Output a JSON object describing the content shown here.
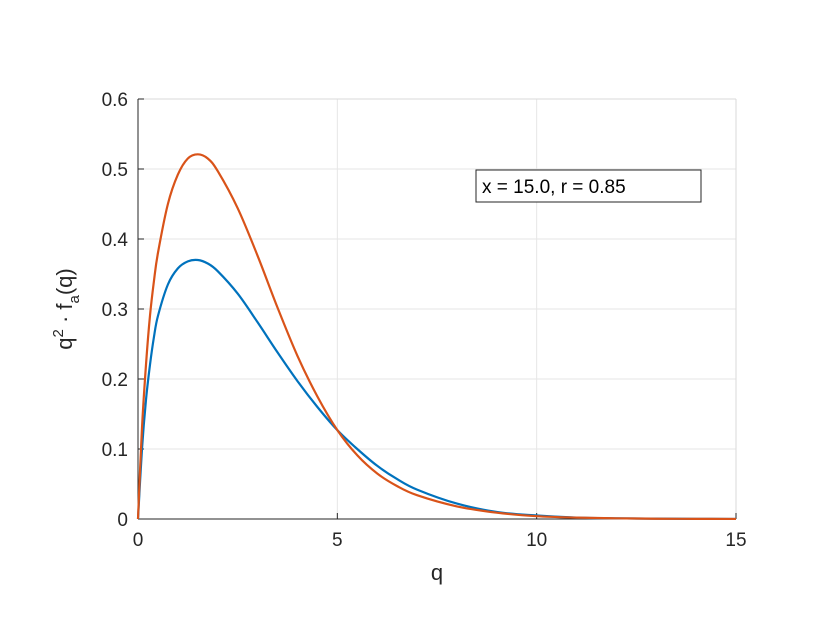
{
  "chart_data": {
    "type": "line",
    "title": "",
    "xlabel": "q",
    "ylabel": {
      "base": "q",
      "sup": "2",
      "middle": " · f",
      "sub": "a",
      "tail": "(q)"
    },
    "xlim": [
      0,
      15
    ],
    "ylim": [
      0,
      0.6
    ],
    "xticks": [
      0,
      5,
      10,
      15
    ],
    "xtick_labels": [
      "0",
      "5",
      "10",
      "15"
    ],
    "yticks": [
      0,
      0.1,
      0.2,
      0.3,
      0.4,
      0.5,
      0.6
    ],
    "ytick_labels": [
      "0",
      "0.1",
      "0.2",
      "0.3",
      "0.4",
      "0.5",
      "0.6"
    ],
    "grid": true,
    "annotation": "x = 15.0, r = 0.85",
    "series": [
      {
        "color": "#0072bd",
        "x": [
          0,
          0.1,
          0.2,
          0.3,
          0.4,
          0.5,
          0.75,
          1.0,
          1.25,
          1.5,
          1.75,
          2.0,
          2.5,
          3.0,
          3.5,
          4.0,
          4.5,
          5.0,
          5.5,
          6.0,
          6.5,
          7.0,
          8.0,
          9.0,
          10.0,
          11.0,
          12.0,
          13.0,
          14.0,
          15.0
        ],
        "y": [
          0,
          0.1,
          0.17,
          0.22,
          0.26,
          0.29,
          0.335,
          0.358,
          0.368,
          0.37,
          0.365,
          0.354,
          0.322,
          0.281,
          0.238,
          0.197,
          0.16,
          0.127,
          0.1,
          0.076,
          0.057,
          0.042,
          0.022,
          0.01,
          0.005,
          0.002,
          0.001,
          0.0005,
          0.0002,
          0.0001
        ]
      },
      {
        "color": "#d95319",
        "x": [
          0,
          0.1,
          0.2,
          0.3,
          0.4,
          0.5,
          0.75,
          1.0,
          1.25,
          1.5,
          1.75,
          2.0,
          2.5,
          3.0,
          3.5,
          4.0,
          4.5,
          5.0,
          5.5,
          6.0,
          6.5,
          7.0,
          8.0,
          9.0,
          10.0,
          11.0,
          12.0,
          13.0,
          14.0,
          15.0
        ],
        "y": [
          0,
          0.13,
          0.22,
          0.29,
          0.34,
          0.38,
          0.45,
          0.492,
          0.515,
          0.521,
          0.515,
          0.497,
          0.444,
          0.376,
          0.302,
          0.233,
          0.175,
          0.127,
          0.091,
          0.065,
          0.047,
          0.034,
          0.018,
          0.009,
          0.004,
          0.002,
          0.001,
          0.0004,
          0.0002,
          0.0001
        ]
      }
    ]
  }
}
